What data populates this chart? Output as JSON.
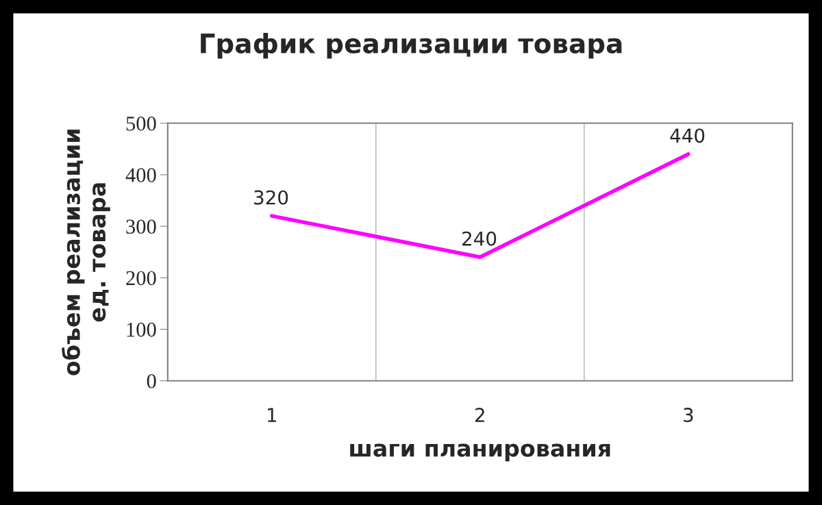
{
  "chart_data": {
    "type": "line",
    "title": "График реализации товара",
    "xlabel": "шаги планирования",
    "ylabel": "объем реализации\nед. товара",
    "categories": [
      "1",
      "2",
      "3"
    ],
    "series": [
      {
        "color": "#ff00ff",
        "values": [
          320,
          240,
          440
        ]
      }
    ],
    "ylim": [
      0,
      500
    ],
    "yticks": [
      0,
      100,
      200,
      300,
      400,
      500
    ],
    "grid": "x",
    "data_labels": true,
    "marker": "none",
    "line_style": "solid"
  }
}
